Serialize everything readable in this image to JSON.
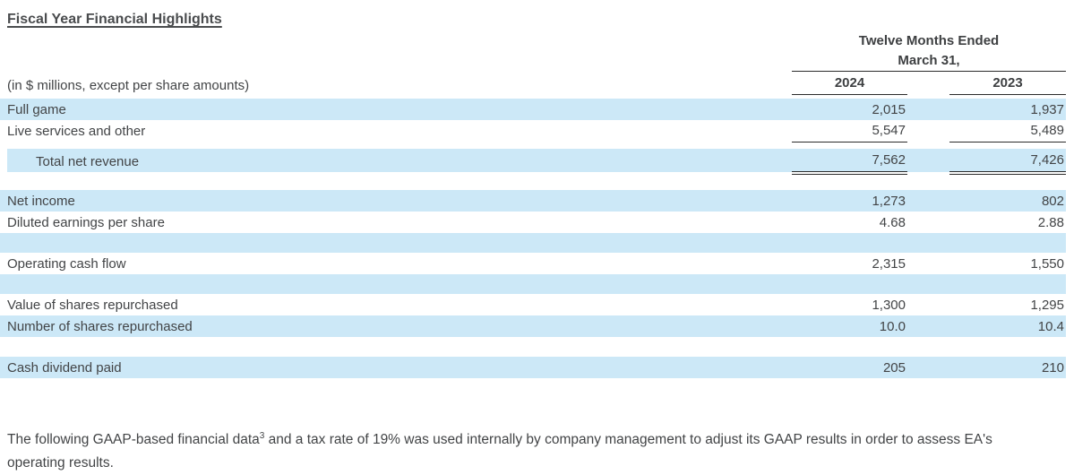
{
  "page": {
    "title": "Fiscal Year Financial Highlights"
  },
  "table": {
    "units_note": "(in $ millions, except per share amounts)",
    "period": {
      "line1": "Twelve Months Ended",
      "line2": "March 31,"
    },
    "columns": [
      "2024",
      "2023"
    ],
    "rows": [
      {
        "label": "Full game",
        "y2024": "2,015",
        "y2023": "1,937"
      },
      {
        "label": "Live services and other",
        "y2024": "5,547",
        "y2023": "5,489"
      },
      {
        "label": "Total net revenue",
        "y2024": "7,562",
        "y2023": "7,426"
      },
      {
        "label": "Net income",
        "y2024": "1,273",
        "y2023": "802"
      },
      {
        "label": "Diluted earnings per share",
        "y2024": "4.68",
        "y2023": "2.88"
      },
      {
        "label": "",
        "y2024": "",
        "y2023": ""
      },
      {
        "label": "Operating cash flow",
        "y2024": "2,315",
        "y2023": "1,550"
      },
      {
        "label": "",
        "y2024": "",
        "y2023": ""
      },
      {
        "label": "Value of shares repurchased",
        "y2024": "1,300",
        "y2023": "1,295"
      },
      {
        "label": "Number of shares repurchased",
        "y2024": "10.0",
        "y2023": "10.4"
      },
      {
        "label": "Cash dividend paid",
        "y2024": "205",
        "y2023": "210"
      }
    ]
  },
  "footnote": {
    "text_before_sup": "The following GAAP-based financial data",
    "sup": "3",
    "text_after_sup": " and a tax rate of 19% was used internally by company management to adjust its GAAP results in order to assess EA's operating results."
  },
  "colors": {
    "row_highlight": "#cce8f7",
    "rule": "#2b2b2b",
    "text": "#424446"
  }
}
